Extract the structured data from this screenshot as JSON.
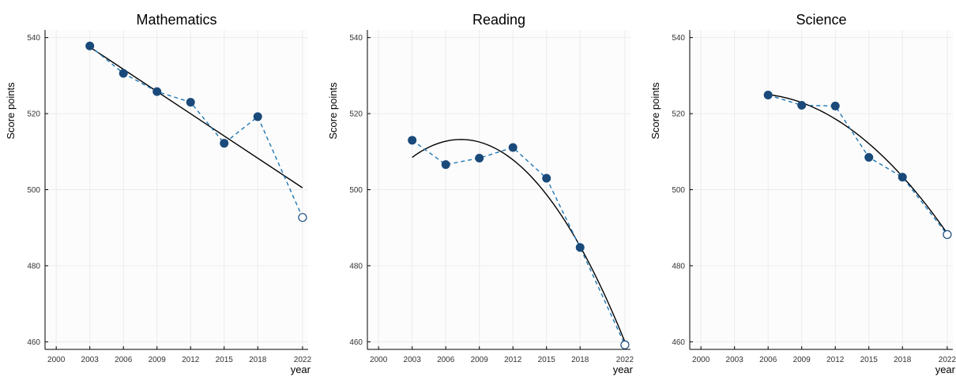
{
  "chart_data": [
    {
      "type": "line",
      "title": "Mathematics",
      "xlabel": "year",
      "ylabel": "Score points",
      "xlim": [
        1999,
        2022.5
      ],
      "ylim": [
        458,
        542
      ],
      "xticks": [
        2000,
        2003,
        2006,
        2009,
        2012,
        2015,
        2018,
        2022
      ],
      "yticks": [
        460,
        480,
        500,
        520,
        540
      ],
      "grid": true,
      "x": [
        2003,
        2006,
        2009,
        2012,
        2015,
        2018,
        2022
      ],
      "values": [
        537.8,
        530.6,
        525.8,
        523.0,
        512.2,
        519.2,
        492.7
      ],
      "open_last_point": true,
      "trend": {
        "kind": "linear",
        "x": [
          2003,
          2022
        ],
        "y": [
          537.5,
          500.5
        ]
      }
    },
    {
      "type": "line",
      "title": "Reading",
      "xlabel": "year",
      "ylabel": "Score points",
      "xlim": [
        1999,
        2022.5
      ],
      "ylim": [
        458,
        542
      ],
      "xticks": [
        2000,
        2003,
        2006,
        2009,
        2012,
        2015,
        2018,
        2022
      ],
      "yticks": [
        460,
        480,
        500,
        520,
        540
      ],
      "grid": true,
      "x": [
        2003,
        2006,
        2009,
        2012,
        2015,
        2018,
        2022
      ],
      "values": [
        513.0,
        506.6,
        508.3,
        511.1,
        503.0,
        484.8,
        459.2
      ],
      "open_last_point": true,
      "trend": {
        "kind": "quadratic",
        "x": [
          2003,
          2007.5,
          2022
        ],
        "y": [
          508.5,
          513.2,
          460.0
        ]
      }
    },
    {
      "type": "line",
      "title": "Science",
      "xlabel": "year",
      "ylabel": "Score points",
      "xlim": [
        1999,
        2022.5
      ],
      "ylim": [
        458,
        542
      ],
      "xticks": [
        2000,
        2003,
        2006,
        2009,
        2012,
        2015,
        2018,
        2022
      ],
      "yticks": [
        460,
        480,
        500,
        520,
        540
      ],
      "grid": true,
      "x": [
        2006,
        2009,
        2012,
        2015,
        2018,
        2022
      ],
      "values": [
        524.9,
        522.2,
        522.0,
        508.5,
        503.3,
        488.2
      ],
      "open_last_point": true,
      "trend": {
        "kind": "quadratic",
        "x": [
          2006,
          2012,
          2022
        ],
        "y": [
          525.0,
          518.6,
          488.5
        ]
      }
    }
  ],
  "colors": {
    "point": "#1a4a7a",
    "dashed_line": "#1f77b4",
    "trend_line": "#000000",
    "grid": "#ebebeb",
    "plot_bg": "#fcfcfc"
  }
}
